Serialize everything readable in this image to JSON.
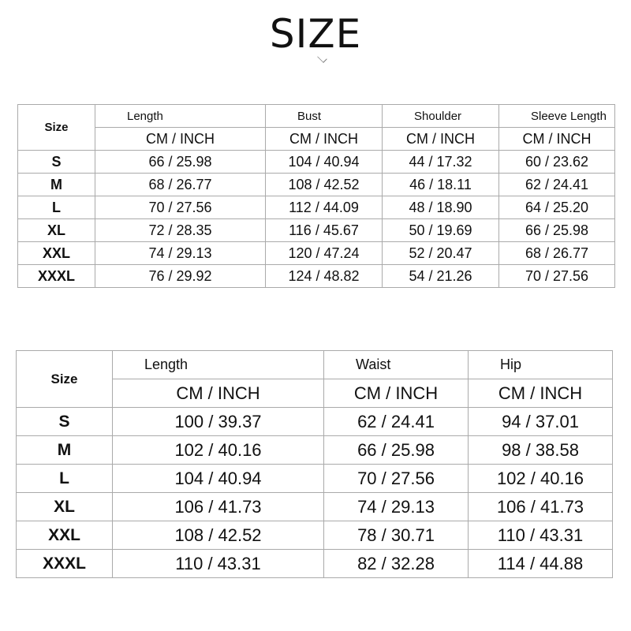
{
  "title": "SIZE",
  "tops": {
    "size_label": "Size",
    "columns": [
      "Length",
      "Bust",
      "Shoulder",
      "Sleeve Length"
    ],
    "unit_label": "CM  /  INCH",
    "rows": [
      {
        "size": "S",
        "values": [
          "66 / 25.98",
          "104 / 40.94",
          "44 / 17.32",
          "60 / 23.62"
        ]
      },
      {
        "size": "M",
        "values": [
          "68 / 26.77",
          "108 / 42.52",
          "46 / 18.11",
          "62 / 24.41"
        ]
      },
      {
        "size": "L",
        "values": [
          "70 / 27.56",
          "112 / 44.09",
          "48 / 18.90",
          "64 / 25.20"
        ]
      },
      {
        "size": "XL",
        "values": [
          "72 / 28.35",
          "116 / 45.67",
          "50 / 19.69",
          "66 / 25.98"
        ]
      },
      {
        "size": "XXL",
        "values": [
          "74 / 29.13",
          "120 / 47.24",
          "52 / 20.47",
          "68 / 26.77"
        ]
      },
      {
        "size": "XXXL",
        "values": [
          "76 / 29.92",
          "124 / 48.82",
          "54 / 21.26",
          "70 / 27.56"
        ]
      }
    ]
  },
  "bottoms": {
    "size_label": "Size",
    "columns": [
      "Length",
      "Waist",
      "Hip"
    ],
    "unit_label": "CM  /  INCH",
    "rows": [
      {
        "size": "S",
        "values": [
          "100 / 39.37",
          "62 / 24.41",
          "94 / 37.01"
        ]
      },
      {
        "size": "M",
        "values": [
          "102 / 40.16",
          "66 / 25.98",
          "98 / 38.58"
        ]
      },
      {
        "size": "L",
        "values": [
          "104 / 40.94",
          "70 / 27.56",
          "102 / 40.16"
        ]
      },
      {
        "size": "XL",
        "values": [
          "106 / 41.73",
          "74 / 29.13",
          "106 / 41.73"
        ]
      },
      {
        "size": "XXL",
        "values": [
          "108 / 42.52",
          "78 / 30.71",
          "110 / 43.31"
        ]
      },
      {
        "size": "XXXL",
        "values": [
          "110 / 43.31",
          "82 / 32.28",
          "114 / 44.88"
        ]
      }
    ]
  }
}
